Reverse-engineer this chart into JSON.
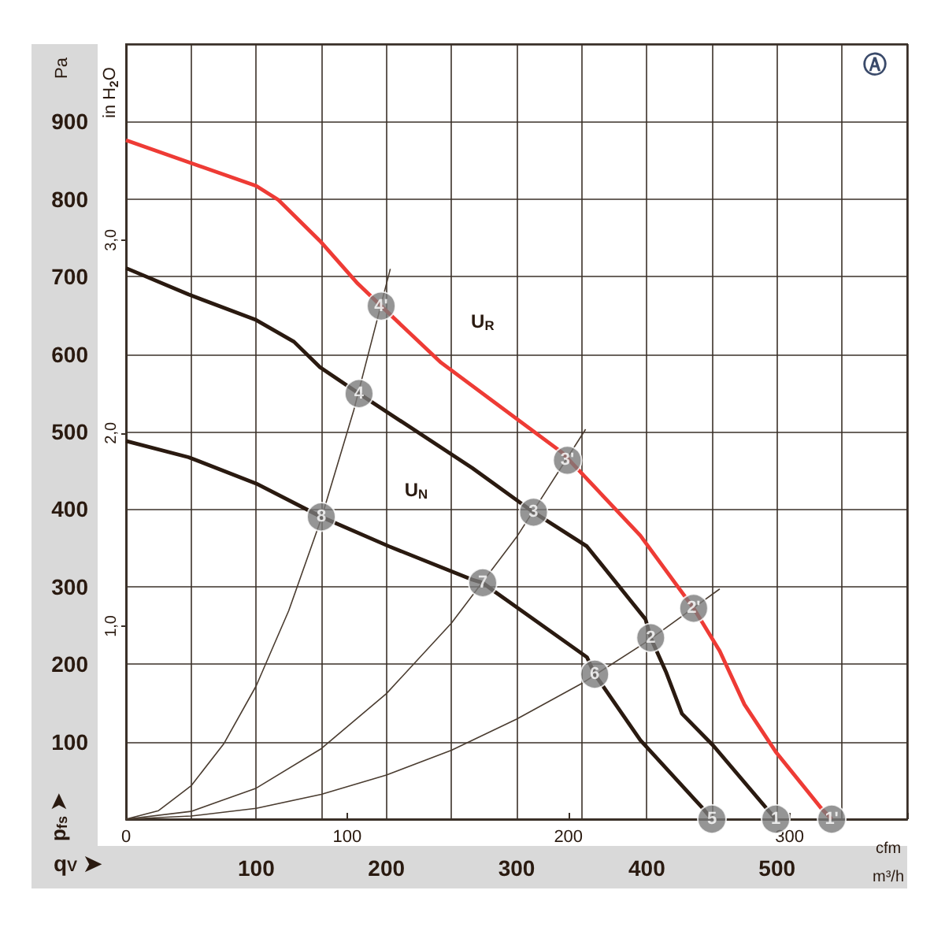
{
  "chart_data": {
    "type": "line",
    "xlabel": "m³/h",
    "x2label": "cfm",
    "ylabel": "Pa",
    "y2label": "in H$_{2}$O",
    "xlim": [
      0,
      600
    ],
    "xticks": [
      {
        "value": 0,
        "label": null
      },
      {
        "value": 50,
        "label": null
      },
      100,
      {
        "value": 150,
        "label": null
      },
      200,
      {
        "value": 250,
        "label": null
      },
      300,
      {
        "value": 350,
        "label": null
      },
      400,
      {
        "value": 450,
        "label": null
      },
      500,
      {
        "value": 550,
        "label": null
      },
      {
        "value": 600,
        "label": null
      }
    ],
    "x2lim": [
      0,
      353.2
    ],
    "x2ticks": [
      0,
      100,
      200,
      300
    ],
    "ylim": [
      0,
      1000
    ],
    "yticks": [
      {
        "value": 0,
        "label": null
      },
      100,
      200,
      300,
      400,
      500,
      600,
      700,
      800,
      900,
      {
        "value": 1000,
        "label": null
      }
    ],
    "y2lim": [
      0,
      4.015
    ],
    "y2ticks": [
      {
        "value": 1,
        "label": "1,0"
      },
      {
        "value": 2,
        "label": "2,0"
      },
      {
        "value": 3,
        "label": "3,0"
      }
    ],
    "grid": true,
    "marker": "none",
    "series": [
      {
        "name": "U$_{R}$",
        "color": "#ee3b35",
        "x": [
          0,
          100,
          117,
          149,
          178,
          196,
          242,
          266,
          335,
          395,
          436,
          456,
          475,
          499,
          534,
          542
        ],
        "values": [
          876,
          817,
          799,
          746,
          691,
          662,
          589,
          559,
          473,
          366,
          272,
          217,
          148,
          87,
          14,
          0
        ]
      },
      {
        "name": "U$_{N}$",
        "color": "#2a1a10",
        "x": [
          0,
          48,
          100,
          129,
          149,
          179,
          266,
          313,
          354,
          399,
          403,
          415,
          427,
          451,
          499
        ],
        "values": [
          711,
          677,
          644,
          616,
          583,
          549,
          453,
          396,
          352,
          258,
          234,
          189,
          136,
          95,
          0
        ]
      },
      {
        "color": "#2a1a10",
        "x": [
          0,
          48,
          100,
          150,
          202,
          266,
          274,
          282,
          354,
          360,
          395,
          443,
          450
        ],
        "values": [
          488,
          467,
          433,
          390,
          352,
          309,
          305,
          295,
          209,
          187,
          102,
          14,
          0
        ]
      },
      {
        "color": "#4a3c30",
        "x": [
          0,
          25,
          50,
          75,
          100,
          125,
          150,
          175,
          203
        ],
        "values": [
          0,
          11,
          43,
          97,
          172,
          269,
          388,
          528,
          710
        ]
      },
      {
        "color": "#4a3c30",
        "x": [
          0,
          50,
          100,
          150,
          200,
          250,
          300,
          353
        ],
        "values": [
          0,
          10,
          40,
          91,
          162,
          253,
          364,
          503
        ]
      },
      {
        "color": "#4a3c30",
        "x": [
          0,
          50,
          100,
          150,
          200,
          250,
          300,
          350,
          400,
          456
        ],
        "values": [
          0,
          4,
          14,
          32,
          57,
          89,
          129,
          175,
          229,
          297
        ]
      }
    ],
    "annotations": [
      {
        "text": "1'",
        "x": 542,
        "y": 0
      },
      {
        "text": "2'",
        "x": 436,
        "y": 272
      },
      {
        "text": "3'",
        "x": 339,
        "y": 463
      },
      {
        "text": "4'",
        "x": 196,
        "y": 662
      },
      {
        "text": "1",
        "x": 499,
        "y": 0
      },
      {
        "text": "2",
        "x": 403,
        "y": 234
      },
      {
        "text": "3",
        "x": 313,
        "y": 396
      },
      {
        "text": "4",
        "x": 179,
        "y": 549
      },
      {
        "text": "5",
        "x": 450,
        "y": 0
      },
      {
        "text": "6",
        "x": 360,
        "y": 187
      },
      {
        "text": "7",
        "x": 274,
        "y": 305
      },
      {
        "text": "8",
        "x": 150,
        "y": 390
      },
      "Ⓐ",
      "p$_{fs}$ ➤",
      "q$_{V}$ ➤"
    ]
  }
}
